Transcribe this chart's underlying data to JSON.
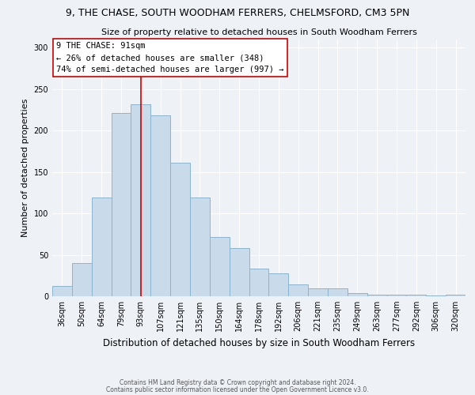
{
  "title": "9, THE CHASE, SOUTH WOODHAM FERRERS, CHELMSFORD, CM3 5PN",
  "subtitle": "Size of property relative to detached houses in South Woodham Ferrers",
  "xlabel": "Distribution of detached houses by size in South Woodham Ferrers",
  "ylabel": "Number of detached properties",
  "bar_labels": [
    "36sqm",
    "50sqm",
    "64sqm",
    "79sqm",
    "93sqm",
    "107sqm",
    "121sqm",
    "135sqm",
    "150sqm",
    "164sqm",
    "178sqm",
    "192sqm",
    "206sqm",
    "221sqm",
    "235sqm",
    "249sqm",
    "263sqm",
    "277sqm",
    "292sqm",
    "306sqm",
    "320sqm"
  ],
  "bar_values": [
    12,
    40,
    119,
    221,
    232,
    218,
    161,
    119,
    72,
    58,
    33,
    28,
    14,
    10,
    10,
    4,
    2,
    2,
    2,
    1,
    2
  ],
  "bar_color": "#c9daea",
  "bar_edge_color": "#8ab4d0",
  "vline_x_idx": 4,
  "vline_color": "#cc0000",
  "ylim": [
    0,
    310
  ],
  "yticks": [
    0,
    50,
    100,
    150,
    200,
    250,
    300
  ],
  "annotation_title": "9 THE CHASE: 91sqm",
  "annotation_line1": "← 26% of detached houses are smaller (348)",
  "annotation_line2": "74% of semi-detached houses are larger (997) →",
  "annotation_box_facecolor": "#ffffff",
  "annotation_box_edgecolor": "#cc0000",
  "footer_line1": "Contains HM Land Registry data © Crown copyright and database right 2024.",
  "footer_line2": "Contains public sector information licensed under the Open Government Licence v3.0.",
  "fig_facecolor": "#eef2f7",
  "plot_facecolor": "#eef2f7",
  "grid_color": "#ffffff",
  "title_fontsize": 9,
  "subtitle_fontsize": 8,
  "ylabel_fontsize": 8,
  "xlabel_fontsize": 8.5,
  "tick_fontsize": 7,
  "annotation_fontsize": 7.5,
  "footer_fontsize": 5.5
}
